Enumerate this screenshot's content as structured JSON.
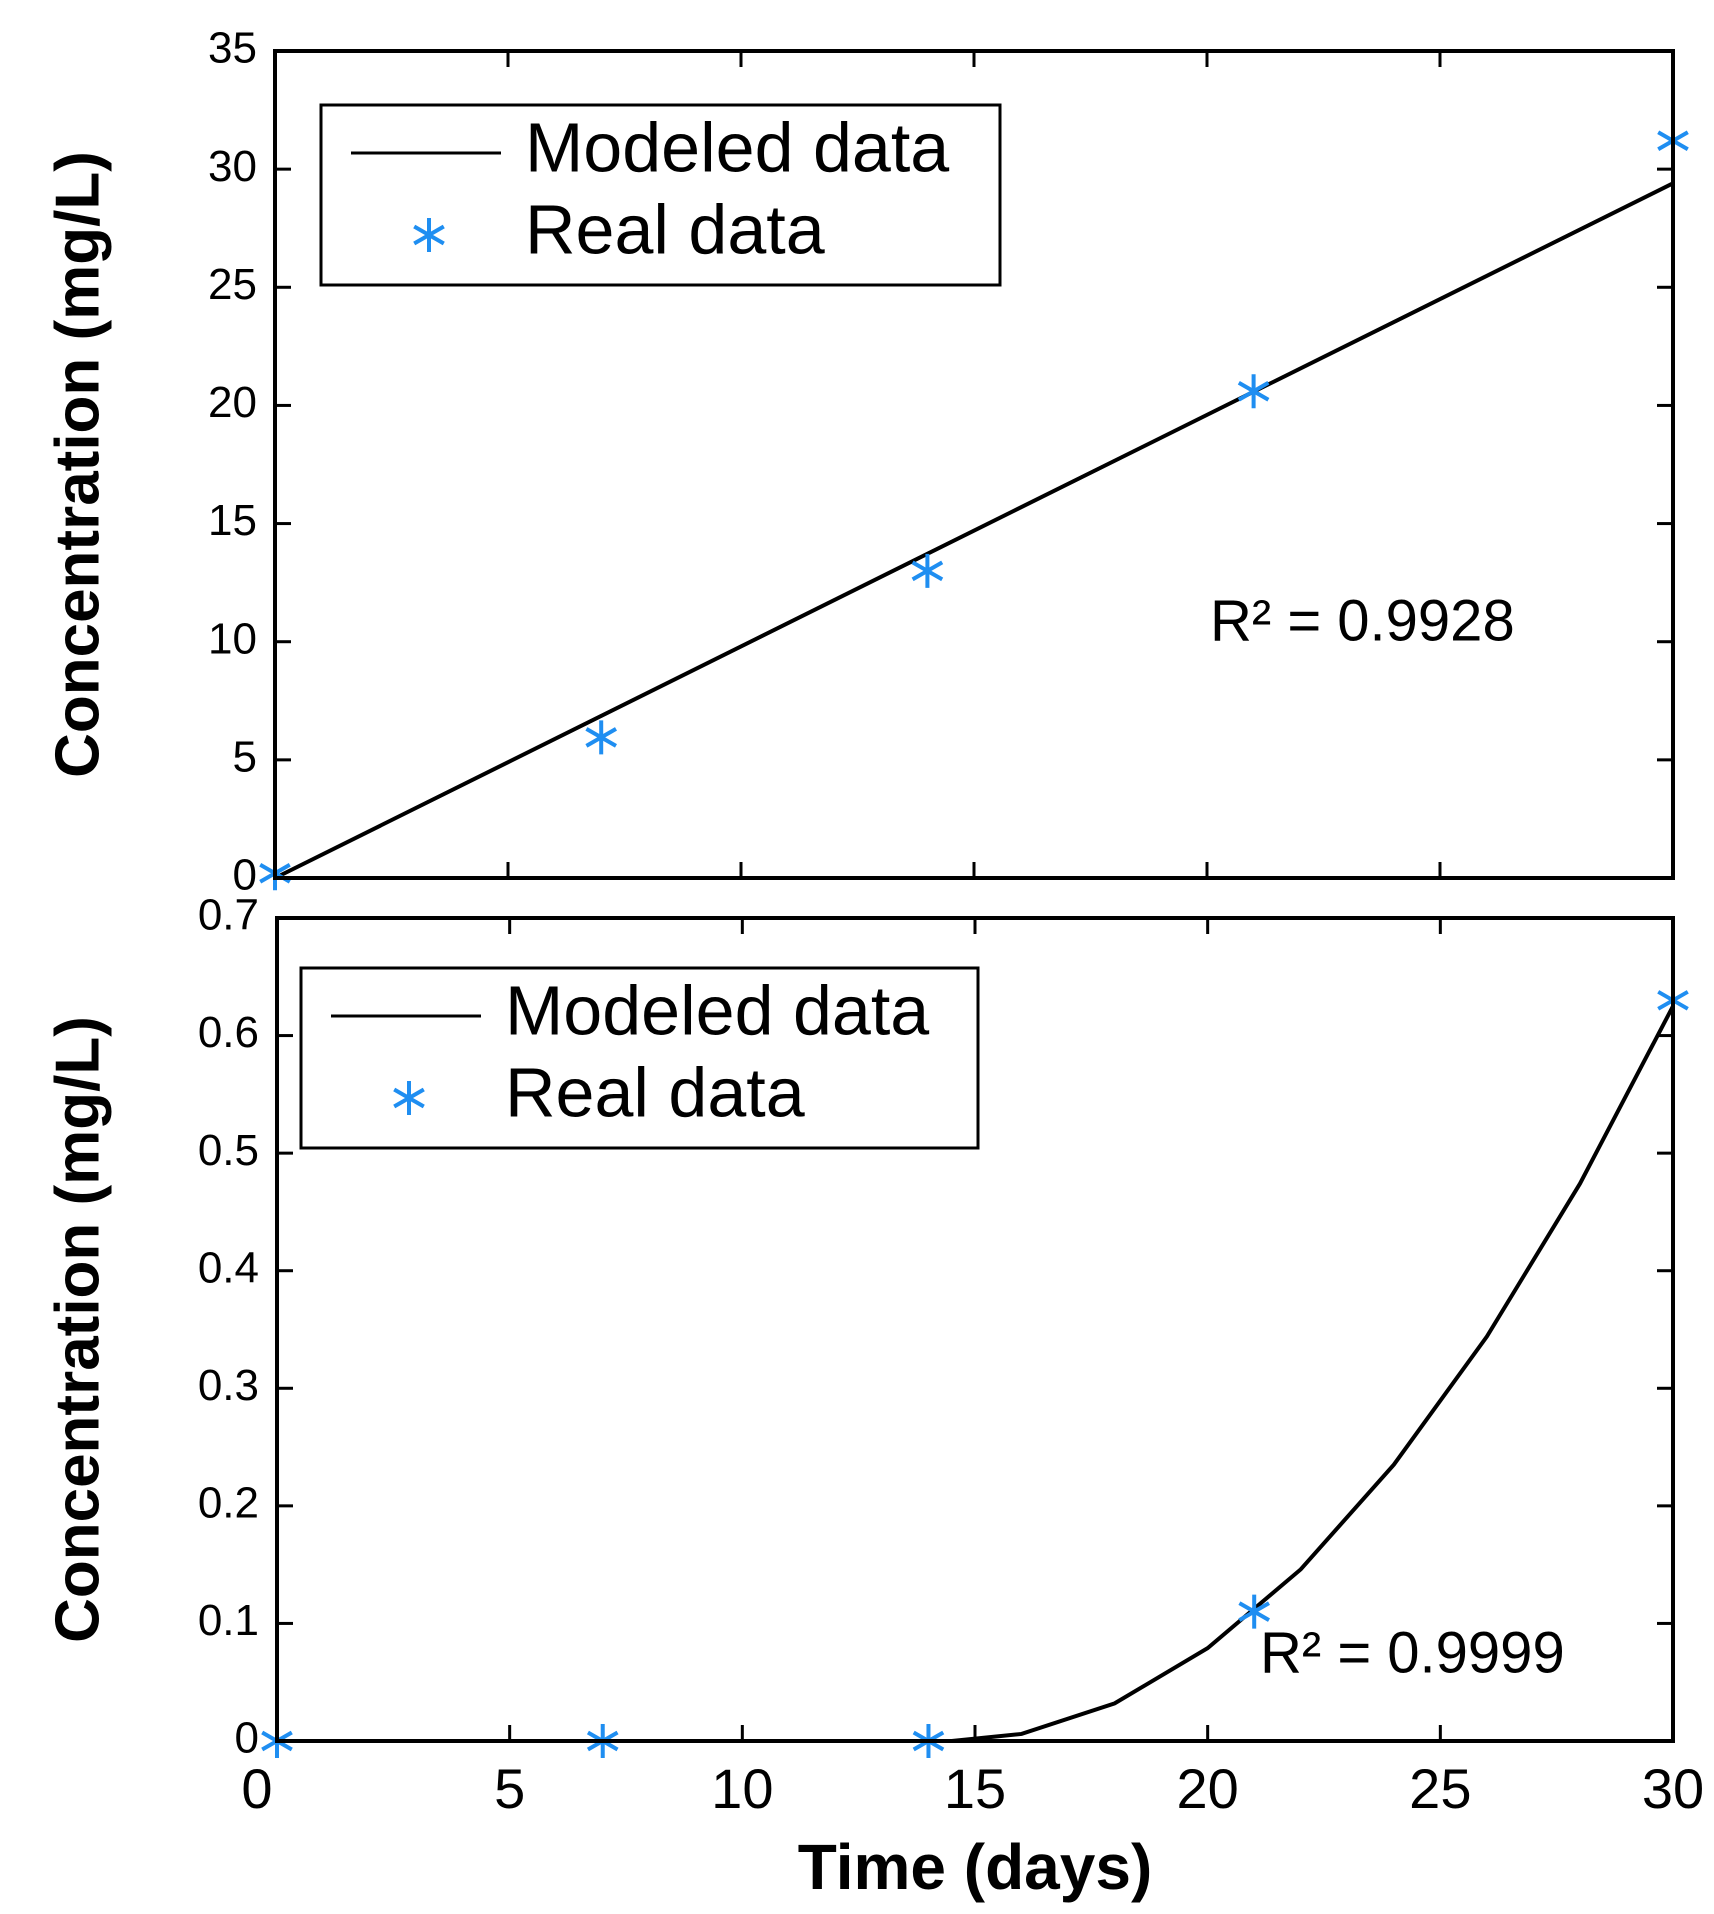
{
  "chart_data": [
    {
      "type": "line",
      "ylabel": "Concentration (mg/L)",
      "annotation": "R² = 0.9928",
      "legend": "upper left",
      "xlim": [
        0,
        30
      ],
      "xticks": [
        0,
        5,
        10,
        15,
        20,
        25,
        30
      ],
      "ylim": [
        0,
        35
      ],
      "yticks": [
        0,
        5,
        10,
        15,
        20,
        25,
        30,
        35
      ],
      "series": [
        {
          "name": "Modeled data",
          "color": "#000000",
          "x": [
            0,
            30
          ],
          "values": [
            0,
            29.4
          ]
        },
        {
          "name": "Real data",
          "color": "#1f8ef1",
          "marker": "*",
          "x": [
            0,
            7,
            14,
            21,
            30
          ],
          "values": [
            0.2,
            5.95,
            13.0,
            20.6,
            31.2
          ]
        }
      ]
    },
    {
      "type": "line",
      "ylabel": "Concentration (mg/L)",
      "xlabel": "Time (days)",
      "annotation": "R² = 0.9999",
      "legend": "upper left",
      "xlim": [
        0,
        30
      ],
      "xticks": [
        0,
        5,
        10,
        15,
        20,
        25,
        30
      ],
      "ylim": [
        0,
        0.7
      ],
      "yticks": [
        0,
        0.1,
        0.2,
        0.3,
        0.4,
        0.5,
        0.6,
        0.7
      ],
      "series": [
        {
          "name": "Modeled data",
          "color": "#000000",
          "x": [
            0,
            14.5,
            16,
            18,
            20,
            22,
            24,
            26,
            28,
            30
          ],
          "values": [
            0,
            0,
            0.006,
            0.032,
            0.079,
            0.146,
            0.235,
            0.344,
            0.474,
            0.625
          ]
        },
        {
          "name": "Real data",
          "color": "#1f8ef1",
          "marker": "*",
          "x": [
            0,
            7,
            14,
            21,
            30
          ],
          "values": [
            0,
            0,
            0,
            0.11,
            0.63
          ]
        }
      ]
    }
  ]
}
